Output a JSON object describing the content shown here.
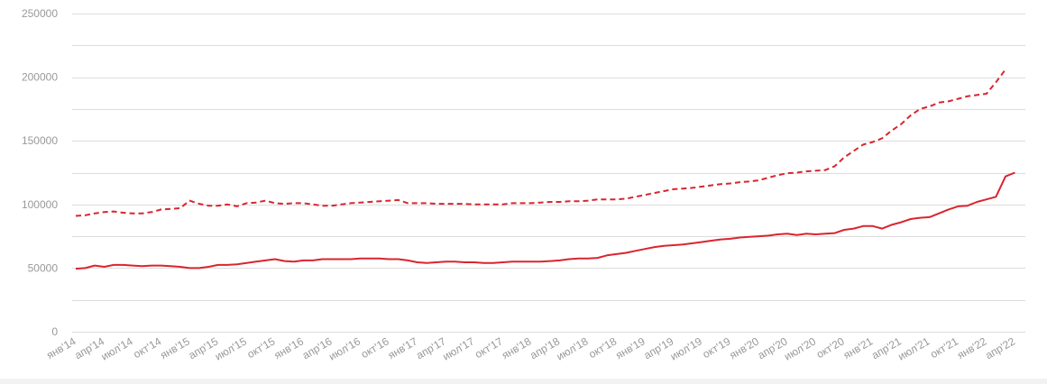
{
  "chart_data": {
    "type": "line",
    "title": "",
    "xlabel": "",
    "ylabel": "",
    "ylim": [
      0,
      250000
    ],
    "yticks": [
      0,
      50000,
      100000,
      150000,
      200000,
      250000
    ],
    "ytick_labels": [
      "0",
      "50000",
      "100000",
      "150000",
      "200000",
      "250000"
    ],
    "grid": true,
    "line_color": "#d9252f",
    "x_tick_labels": [
      "янв'14",
      "апр'14",
      "июл'14",
      "окт'14",
      "янв'15",
      "апр'15",
      "июл'15",
      "окт'15",
      "янв'16",
      "апр'16",
      "июл'16",
      "окт'16",
      "янв'17",
      "апр'17",
      "июл'17",
      "окт'17",
      "янв'18",
      "апр'18",
      "июл'18",
      "окт'18",
      "янв'19",
      "апр'19",
      "июл'19",
      "окт'19",
      "янв'20",
      "апр'20",
      "июл'20",
      "окт'20",
      "янв'21",
      "апр'21",
      "июл'21",
      "окт'21",
      "янв'22",
      "апр'22"
    ],
    "months": [
      "янв'14",
      "фев'14",
      "мар'14",
      "апр'14",
      "май'14",
      "июн'14",
      "июл'14",
      "авг'14",
      "сен'14",
      "окт'14",
      "ноя'14",
      "дек'14",
      "янв'15",
      "фев'15",
      "мар'15",
      "апр'15",
      "май'15",
      "июн'15",
      "июл'15",
      "авг'15",
      "сен'15",
      "окт'15",
      "ноя'15",
      "дек'15",
      "янв'16",
      "фев'16",
      "мар'16",
      "апр'16",
      "май'16",
      "июн'16",
      "июл'16",
      "авг'16",
      "сен'16",
      "окт'16",
      "ноя'16",
      "дек'16",
      "янв'17",
      "фев'17",
      "мар'17",
      "апр'17",
      "май'17",
      "июн'17",
      "июл'17",
      "авг'17",
      "сен'17",
      "окт'17",
      "ноя'17",
      "дек'17",
      "янв'18",
      "фев'18",
      "мар'18",
      "апр'18",
      "май'18",
      "июн'18",
      "июл'18",
      "авг'18",
      "сен'18",
      "окт'18",
      "ноя'18",
      "дек'18",
      "янв'19",
      "фев'19",
      "мар'19",
      "апр'19",
      "май'19",
      "июн'19",
      "июл'19",
      "авг'19",
      "сен'19",
      "окт'19",
      "ноя'19",
      "дек'19",
      "янв'20",
      "фев'20",
      "мар'20",
      "апр'20",
      "май'20",
      "июн'20",
      "июл'20",
      "авг'20",
      "сен'20",
      "окт'20",
      "ноя'20",
      "дек'20",
      "янв'21",
      "фев'21",
      "мар'21",
      "апр'21",
      "май'21",
      "июн'21",
      "июл'21",
      "авг'21",
      "сен'21",
      "окт'21",
      "ноя'21",
      "дек'21",
      "янв'22",
      "фев'22",
      "мар'22",
      "апр'22",
      "май'22"
    ],
    "series": [
      {
        "style": "dashed",
        "values": [
          91000,
          91500,
          93000,
          94000,
          94500,
          93500,
          93000,
          93000,
          94000,
          96000,
          96500,
          97000,
          103000,
          100500,
          99000,
          99000,
          100000,
          98500,
          101000,
          101500,
          103000,
          101000,
          100500,
          101000,
          101000,
          100000,
          99000,
          99000,
          100000,
          101000,
          101500,
          102000,
          102500,
          103000,
          103500,
          101000,
          101000,
          101000,
          100500,
          100500,
          100500,
          100500,
          100000,
          100000,
          100000,
          100000,
          101000,
          101000,
          101000,
          101500,
          102000,
          102000,
          102500,
          102500,
          103000,
          104000,
          104000,
          104000,
          104500,
          106000,
          107500,
          109000,
          110500,
          112000,
          112500,
          113000,
          114000,
          115000,
          116000,
          116500,
          117500,
          118000,
          119000,
          121000,
          123000,
          124500,
          125000,
          126000,
          126500,
          127000,
          130000,
          137000,
          142000,
          147000,
          149000,
          152000,
          158000,
          163000,
          170000,
          175000,
          177000,
          180000,
          181000,
          183000,
          185000,
          186000,
          187000,
          196000,
          206000
        ]
      },
      {
        "style": "solid",
        "values": [
          49500,
          50000,
          52000,
          51000,
          52500,
          52500,
          52000,
          51500,
          52000,
          52000,
          51500,
          51000,
          50000,
          50000,
          51000,
          52500,
          52500,
          53000,
          54000,
          55000,
          56000,
          57000,
          55500,
          55000,
          56000,
          56000,
          57000,
          57000,
          57000,
          57000,
          57500,
          57500,
          57500,
          57000,
          57000,
          56000,
          54500,
          54000,
          54500,
          55000,
          55000,
          54500,
          54500,
          54000,
          54000,
          54500,
          55000,
          55000,
          55000,
          55000,
          55500,
          56000,
          57000,
          57500,
          57500,
          58000,
          60000,
          61000,
          62000,
          63500,
          65000,
          66500,
          67500,
          68000,
          68500,
          69500,
          70500,
          71500,
          72500,
          73000,
          74000,
          74500,
          75000,
          75500,
          76500,
          77000,
          76000,
          77000,
          76500,
          77000,
          77500,
          80000,
          81000,
          83000,
          83000,
          81000,
          84000,
          86000,
          88500,
          89500,
          90000,
          93000,
          96000,
          98500,
          99000,
          102000,
          104000,
          106000,
          122000,
          125000
        ]
      }
    ]
  }
}
